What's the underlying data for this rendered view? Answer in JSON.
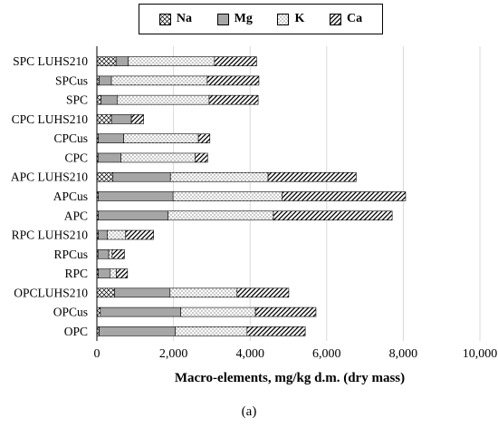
{
  "chart_data": {
    "type": "bar",
    "orientation": "horizontal",
    "stacked": true,
    "categories": [
      "SPC LUHS210",
      "SPCus",
      "SPC",
      "CPC LUHS210",
      "CPCus",
      "CPC",
      "APC LUHS210",
      "APCus",
      "APC",
      "RPC LUHS210",
      "RPCus",
      "RPC",
      "OPCLUHS210",
      "OPCus",
      "OPC"
    ],
    "series": [
      {
        "name": "Na",
        "pattern": "crosshatch",
        "values": [
          500,
          60,
          110,
          380,
          40,
          30,
          420,
          40,
          40,
          40,
          30,
          40,
          460,
          90,
          60
        ]
      },
      {
        "name": "Mg",
        "pattern": "solid",
        "values": [
          320,
          320,
          420,
          520,
          660,
          600,
          1500,
          1950,
          1820,
          230,
          280,
          300,
          1450,
          2100,
          1990
        ]
      },
      {
        "name": "K",
        "pattern": "dots",
        "values": [
          2250,
          2500,
          2400,
          0,
          1950,
          1940,
          2550,
          2850,
          2750,
          480,
          90,
          170,
          1750,
          1950,
          1870
        ]
      },
      {
        "name": "Ca",
        "pattern": "diagonal",
        "values": [
          1100,
          1350,
          1280,
          320,
          300,
          320,
          2300,
          3220,
          3100,
          730,
          320,
          290,
          1350,
          1580,
          1520
        ]
      }
    ],
    "xlim": [
      0,
      10000
    ],
    "xticks": [
      "0",
      "2,000",
      "4,000",
      "6,000",
      "8,000",
      "10,000"
    ],
    "xtick_values": [
      0,
      2000,
      4000,
      6000,
      8000,
      10000
    ],
    "xlabel": "Macro-elements, mg/kg d.m. (dry mass)",
    "ylabel": "",
    "legend_position": "top",
    "grid": "vertical",
    "caption": "(a)"
  },
  "colors": {
    "mg": "#a6a6a6",
    "line": "#000000",
    "grid": "#d9d9d9",
    "text": "#000000"
  }
}
